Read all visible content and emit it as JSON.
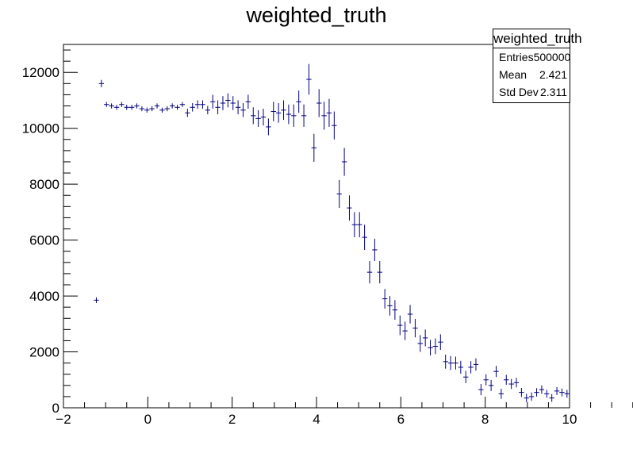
{
  "chart_data": {
    "type": "scatter",
    "title": "weighted_truth",
    "xlabel": "",
    "ylabel": "",
    "xlim": [
      -2,
      10
    ],
    "ylim": [
      0,
      13000
    ],
    "x_ticks": [
      -2,
      0,
      2,
      4,
      6,
      8,
      10
    ],
    "y_ticks": [
      0,
      2000,
      4000,
      6000,
      8000,
      10000,
      12000
    ],
    "bin_width": 0.12,
    "marker_color": "#000080",
    "stats": {
      "title": "weighted_truth",
      "rows": [
        {
          "label": "Entries",
          "value": "500000"
        },
        {
          "label": "Mean",
          "value": "2.421"
        },
        {
          "label": "Std Dev",
          "value": "2.311"
        }
      ]
    },
    "x": [
      -1.22,
      -1.1,
      -0.98,
      -0.86,
      -0.74,
      -0.62,
      -0.5,
      -0.38,
      -0.26,
      -0.14,
      -0.02,
      0.1,
      0.22,
      0.34,
      0.46,
      0.58,
      0.7,
      0.82,
      0.94,
      1.06,
      1.18,
      1.3,
      1.42,
      1.54,
      1.66,
      1.78,
      1.9,
      2.02,
      2.14,
      2.26,
      2.38,
      2.5,
      2.62,
      2.74,
      2.86,
      2.98,
      3.1,
      3.22,
      3.34,
      3.46,
      3.58,
      3.7,
      3.82,
      3.94,
      4.06,
      4.18,
      4.3,
      4.42,
      4.54,
      4.66,
      4.78,
      4.9,
      5.02,
      5.14,
      5.26,
      5.38,
      5.5,
      5.62,
      5.74,
      5.86,
      5.98,
      6.1,
      6.22,
      6.34,
      6.46,
      6.58,
      6.7,
      6.82,
      6.94,
      7.06,
      7.18,
      7.3,
      7.42,
      7.54,
      7.66,
      7.78,
      7.9,
      8.02,
      8.14,
      8.26,
      8.38,
      8.5,
      8.62,
      8.74,
      8.86,
      8.98,
      9.1,
      9.22,
      9.34,
      9.46,
      9.58,
      9.7,
      9.82,
      9.94
    ],
    "y": [
      3850,
      11600,
      10850,
      10800,
      10750,
      10850,
      10750,
      10750,
      10800,
      10700,
      10650,
      10700,
      10800,
      10650,
      10700,
      10800,
      10750,
      10850,
      10550,
      10750,
      10850,
      10850,
      10650,
      10950,
      10750,
      10900,
      11000,
      10900,
      10750,
      10650,
      10950,
      10450,
      10350,
      10400,
      10050,
      10600,
      10550,
      10650,
      10500,
      10450,
      10950,
      10450,
      11750,
      9300,
      10900,
      10450,
      10550,
      10100,
      7650,
      8800,
      7150,
      6550,
      6550,
      6100,
      4850,
      5650,
      4850,
      3900,
      3650,
      3500,
      2950,
      2750,
      3350,
      2850,
      2300,
      2500,
      2150,
      2200,
      2350,
      1650,
      1600,
      1600,
      1450,
      1100,
      1450,
      1550,
      650,
      1000,
      800,
      1300,
      500,
      1000,
      850,
      900,
      550,
      350,
      400,
      550,
      650,
      500,
      350,
      600,
      550,
      500
    ],
    "yerr": [
      100,
      130,
      90,
      90,
      90,
      90,
      90,
      90,
      90,
      90,
      90,
      90,
      90,
      90,
      90,
      90,
      90,
      90,
      150,
      150,
      150,
      150,
      150,
      250,
      250,
      250,
      250,
      250,
      250,
      250,
      250,
      300,
      300,
      300,
      300,
      350,
      350,
      350,
      350,
      400,
      400,
      400,
      550,
      500,
      500,
      500,
      500,
      500,
      500,
      500,
      450,
      450,
      450,
      450,
      400,
      400,
      400,
      350,
      350,
      350,
      350,
      330,
      330,
      330,
      300,
      300,
      280,
      280,
      280,
      250,
      250,
      230,
      230,
      220,
      220,
      220,
      200,
      200,
      200,
      200,
      180,
      180,
      180,
      170,
      160,
      150,
      150,
      150,
      150,
      140,
      140,
      140,
      140,
      140
    ]
  }
}
